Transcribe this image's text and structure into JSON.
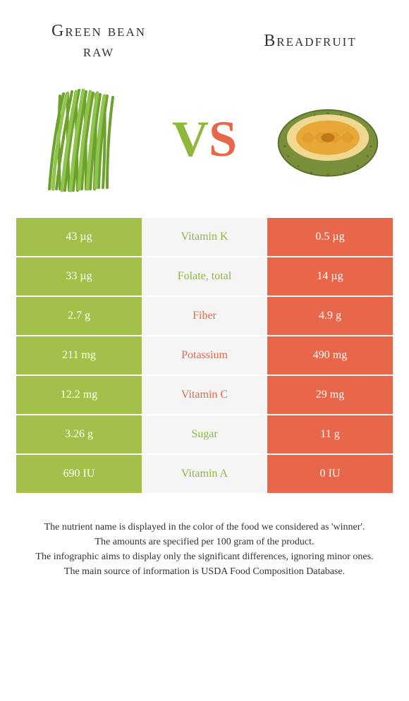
{
  "colors": {
    "left_bg": "#a3c14a",
    "right_bg": "#e8674a",
    "mid_bg": "#f5f5f5",
    "left_text": "#8fb83a",
    "right_text": "#e8674a"
  },
  "header": {
    "left_title_line1": "Green bean",
    "left_title_line2": "raw",
    "right_title": "Breadfruit",
    "vs_v": "V",
    "vs_s": "S"
  },
  "rows": [
    {
      "left": "43 µg",
      "label": "Vitamin K",
      "right": "0.5 µg",
      "winner": "left"
    },
    {
      "left": "33 µg",
      "label": "Folate, total",
      "right": "14 µg",
      "winner": "left"
    },
    {
      "left": "2.7 g",
      "label": "Fiber",
      "right": "4.9 g",
      "winner": "right"
    },
    {
      "left": "211 mg",
      "label": "Potassium",
      "right": "490 mg",
      "winner": "right"
    },
    {
      "left": "12.2 mg",
      "label": "Vitamin C",
      "right": "29 mg",
      "winner": "right"
    },
    {
      "left": "3.26 g",
      "label": "Sugar",
      "right": "11 g",
      "winner": "left"
    },
    {
      "left": "690 IU",
      "label": "Vitamin A",
      "right": "0 IU",
      "winner": "left"
    }
  ],
  "footer": {
    "line1": "The nutrient name is displayed in the color of the food we considered as 'winner'.",
    "line2": "The amounts are specified per 100 gram of the product.",
    "line3": "The infographic aims to display only the significant differences, ignoring minor ones.",
    "line4": "The main source of information is USDA Food Composition Database."
  }
}
